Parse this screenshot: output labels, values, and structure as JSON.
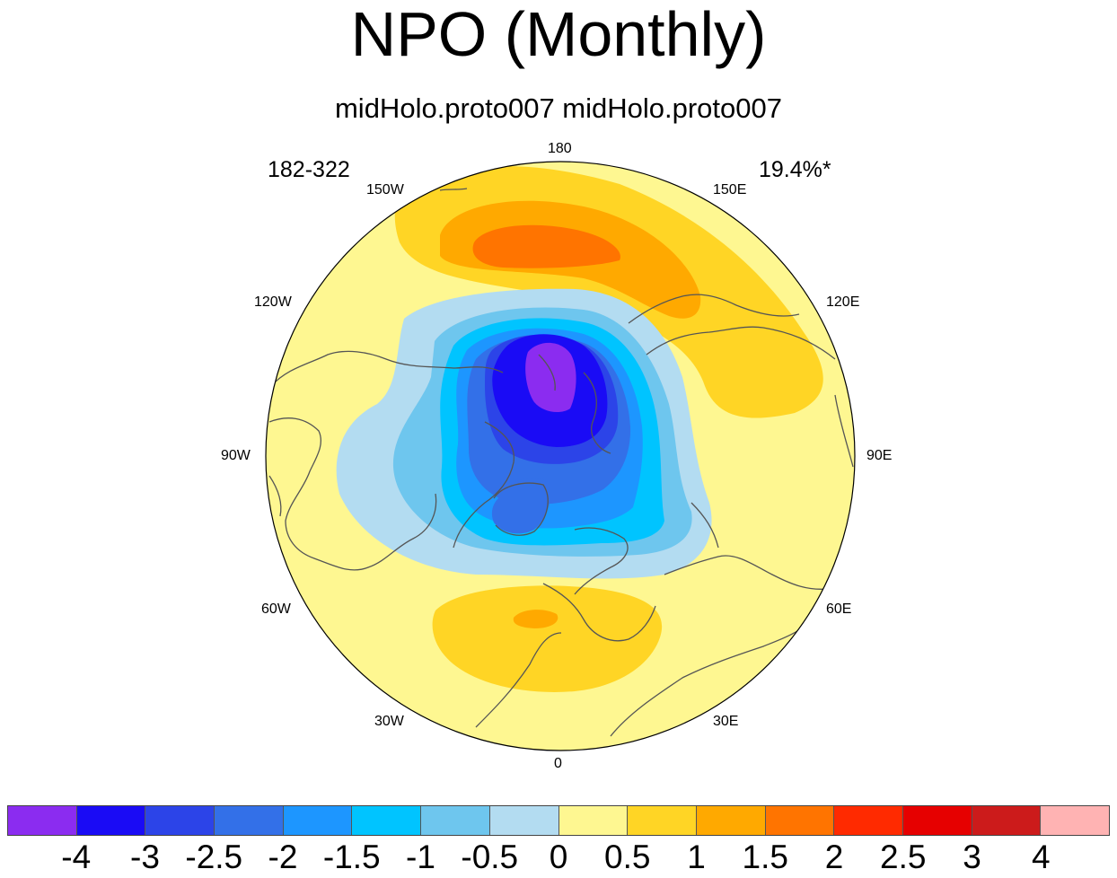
{
  "title": "NPO (Monthly)",
  "subtitle": "midHolo.proto007  midHolo.proto007",
  "corner_left": "182-322",
  "corner_right": "19.4%*",
  "lon_labels": {
    "top": "180",
    "bottom": "0",
    "w150": "150W",
    "e150": "150E",
    "w120": "120W",
    "e120": "120E",
    "w90": "90W",
    "e90": "90E",
    "w60": "60W",
    "e60": "60E",
    "w30": "30W",
    "e30": "30E"
  },
  "colorbar": {
    "colors": [
      "#8b2cf0",
      "#1a0bf5",
      "#2c44e8",
      "#3370e8",
      "#1d96ff",
      "#00c4ff",
      "#6ec6ee",
      "#b3dcf1",
      "#fef791",
      "#ffd525",
      "#ffa900",
      "#ff7400",
      "#ff2a00",
      "#e60000",
      "#cc1b1b",
      "#ffb3b3"
    ],
    "levels": [
      "-4",
      "-3",
      "-2.5",
      "-2",
      "-1.5",
      "-1",
      "-0.5",
      "0",
      "0.5",
      "1",
      "1.5",
      "2",
      "2.5",
      "3",
      "4"
    ]
  }
}
